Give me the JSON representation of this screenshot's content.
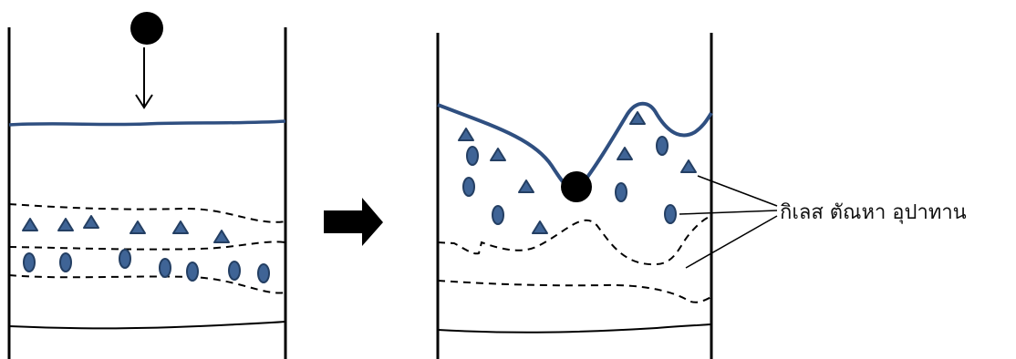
{
  "label": {
    "text": "กิเลส ตัณหา อุปาทาน"
  },
  "colors": {
    "particle": "#3f6496",
    "particle_stroke": "#243f63",
    "water_line": "#2f4f80",
    "ball": "#000000",
    "line": "#000000",
    "background": "#ffffff"
  },
  "icons": {
    "ball": "black-ball-icon",
    "drop_arrow": "down-arrow-icon",
    "transition_arrow": "right-arrow-icon",
    "triangle": "triangle-particle-icon",
    "oval": "oval-particle-icon"
  }
}
